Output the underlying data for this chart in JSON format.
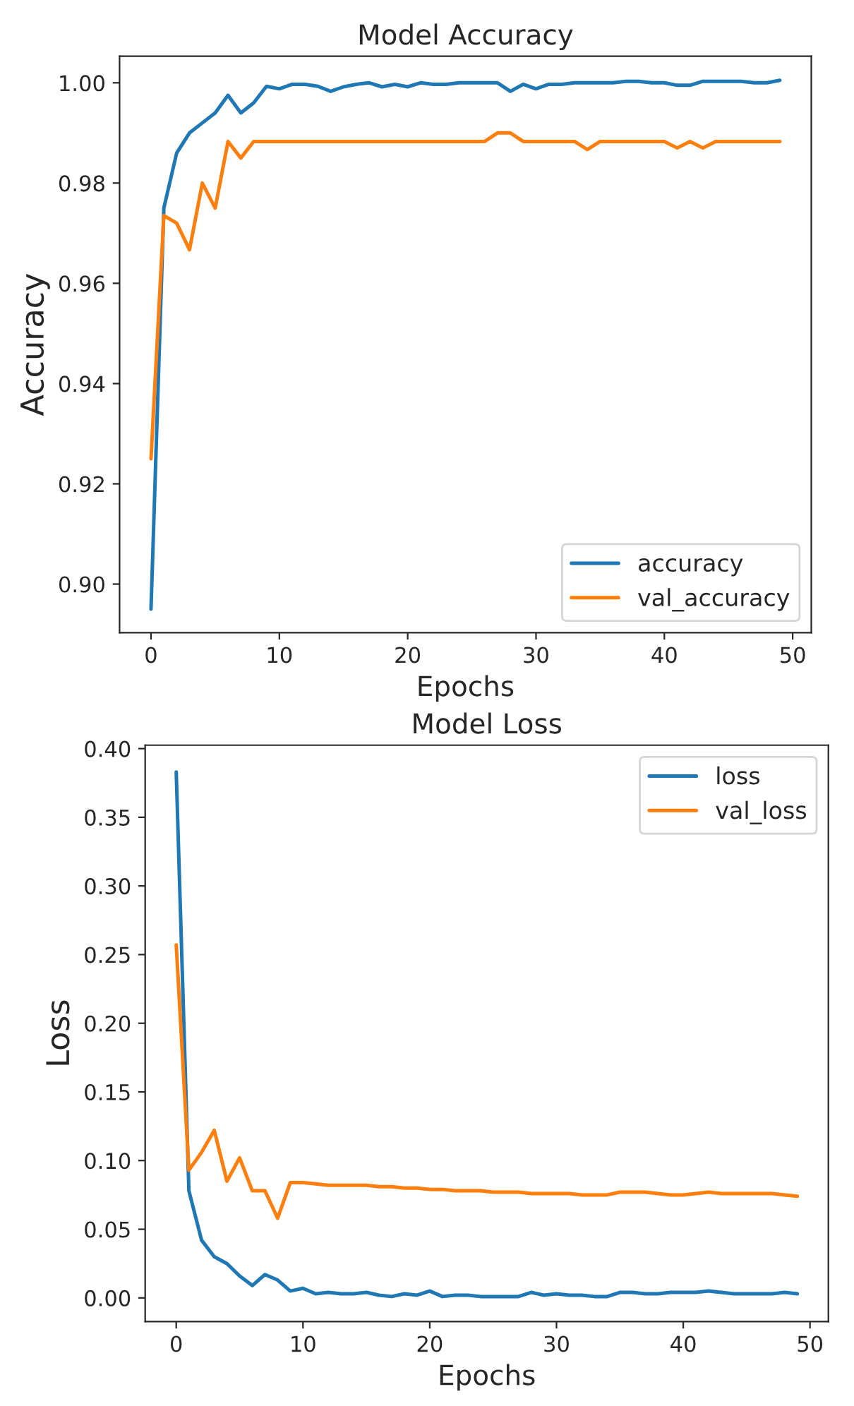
{
  "chart_data": [
    {
      "type": "line",
      "title": "Model Accuracy",
      "xlabel": "Epochs",
      "ylabel": "Accuracy",
      "x": [
        0,
        1,
        2,
        3,
        4,
        5,
        6,
        7,
        8,
        9,
        10,
        11,
        12,
        13,
        14,
        15,
        16,
        17,
        18,
        19,
        20,
        21,
        22,
        23,
        24,
        25,
        26,
        27,
        28,
        29,
        30,
        31,
        32,
        33,
        34,
        35,
        36,
        37,
        38,
        39,
        40,
        41,
        42,
        43,
        44,
        45,
        46,
        47,
        48,
        49
      ],
      "series": [
        {
          "name": "accuracy",
          "color": "#1f77b4",
          "values": [
            0.895,
            0.975,
            0.986,
            0.99,
            0.992,
            0.994,
            0.9975,
            0.994,
            0.996,
            0.9993,
            0.9988,
            0.9997,
            0.9997,
            0.9993,
            0.9983,
            0.9992,
            0.9997,
            1.0,
            0.9992,
            0.9997,
            0.9992,
            1.0,
            0.9997,
            0.9997,
            1.0,
            1.0,
            1.0,
            1.0,
            0.9983,
            0.9997,
            0.9988,
            0.9997,
            0.9997,
            1.0,
            1.0,
            1.0,
            1.0,
            1.0003,
            1.0003,
            1.0,
            1.0,
            0.9995,
            0.9995,
            1.0003,
            1.0003,
            1.0003,
            1.0003,
            1.0,
            1.0,
            1.0005
          ]
        },
        {
          "name": "val_accuracy",
          "color": "#ff7f0e",
          "values": [
            0.925,
            0.9735,
            0.972,
            0.9667,
            0.98,
            0.975,
            0.9883,
            0.985,
            0.9883,
            0.9883,
            0.9883,
            0.9883,
            0.9883,
            0.9883,
            0.9883,
            0.9883,
            0.9883,
            0.9883,
            0.9883,
            0.9883,
            0.9883,
            0.9883,
            0.9883,
            0.9883,
            0.9883,
            0.9883,
            0.9883,
            0.99,
            0.99,
            0.9883,
            0.9883,
            0.9883,
            0.9883,
            0.9883,
            0.9867,
            0.9883,
            0.9883,
            0.9883,
            0.9883,
            0.9883,
            0.9883,
            0.987,
            0.9883,
            0.987,
            0.9883,
            0.9883,
            0.9883,
            0.9883,
            0.9883,
            0.9883
          ]
        }
      ],
      "xlim": [
        -2.45,
        51.45
      ],
      "ylim": [
        0.8903,
        1.0053
      ],
      "xticks": [
        0,
        10,
        20,
        30,
        40,
        50
      ],
      "yticks": [
        {
          "value": 0.9,
          "label": "0.90"
        },
        {
          "value": 0.92,
          "label": "0.92"
        },
        {
          "value": 0.94,
          "label": "0.94"
        },
        {
          "value": 0.96,
          "label": "0.96"
        },
        {
          "value": 0.98,
          "label": "0.98"
        },
        {
          "value": 1.0,
          "label": "1.00"
        }
      ],
      "legend": "bottom right",
      "grid": false,
      "line_style": "solid",
      "marker": "none"
    },
    {
      "type": "line",
      "title": "Model Loss",
      "xlabel": "Epochs",
      "ylabel": "Loss",
      "x": [
        0,
        1,
        2,
        3,
        4,
        5,
        6,
        7,
        8,
        9,
        10,
        11,
        12,
        13,
        14,
        15,
        16,
        17,
        18,
        19,
        20,
        21,
        22,
        23,
        24,
        25,
        26,
        27,
        28,
        29,
        30,
        31,
        32,
        33,
        34,
        35,
        36,
        37,
        38,
        39,
        40,
        41,
        42,
        43,
        44,
        45,
        46,
        47,
        48,
        49
      ],
      "series": [
        {
          "name": "loss",
          "color": "#1f77b4",
          "values": [
            0.383,
            0.078,
            0.042,
            0.03,
            0.025,
            0.016,
            0.009,
            0.017,
            0.013,
            0.005,
            0.007,
            0.003,
            0.004,
            0.003,
            0.003,
            0.004,
            0.002,
            0.001,
            0.003,
            0.002,
            0.005,
            0.001,
            0.002,
            0.002,
            0.001,
            0.001,
            0.001,
            0.001,
            0.004,
            0.002,
            0.003,
            0.002,
            0.002,
            0.001,
            0.001,
            0.004,
            0.004,
            0.003,
            0.003,
            0.004,
            0.004,
            0.004,
            0.005,
            0.004,
            0.003,
            0.003,
            0.003,
            0.003,
            0.004,
            0.003
          ]
        },
        {
          "name": "val_loss",
          "color": "#ff7f0e",
          "values": [
            0.257,
            0.093,
            0.106,
            0.122,
            0.085,
            0.102,
            0.078,
            0.078,
            0.058,
            0.084,
            0.084,
            0.083,
            0.082,
            0.082,
            0.082,
            0.082,
            0.081,
            0.081,
            0.08,
            0.08,
            0.079,
            0.079,
            0.078,
            0.078,
            0.078,
            0.077,
            0.077,
            0.077,
            0.076,
            0.076,
            0.076,
            0.076,
            0.075,
            0.075,
            0.075,
            0.077,
            0.077,
            0.077,
            0.076,
            0.075,
            0.075,
            0.076,
            0.077,
            0.076,
            0.076,
            0.076,
            0.076,
            0.076,
            0.075,
            0.074
          ]
        }
      ],
      "xlim": [
        -2.45,
        51.45
      ],
      "ylim": [
        -0.0173,
        0.4025
      ],
      "xticks": [
        0,
        10,
        20,
        30,
        40,
        50
      ],
      "yticks": [
        {
          "value": 0.0,
          "label": "0.00"
        },
        {
          "value": 0.05,
          "label": "0.05"
        },
        {
          "value": 0.1,
          "label": "0.10"
        },
        {
          "value": 0.15,
          "label": "0.15"
        },
        {
          "value": 0.2,
          "label": "0.20"
        },
        {
          "value": 0.25,
          "label": "0.25"
        },
        {
          "value": 0.3,
          "label": "0.30"
        },
        {
          "value": 0.35,
          "label": "0.35"
        },
        {
          "value": 0.4,
          "label": "0.40"
        }
      ],
      "legend": "top right",
      "grid": false,
      "line_style": "solid",
      "marker": "none"
    }
  ]
}
